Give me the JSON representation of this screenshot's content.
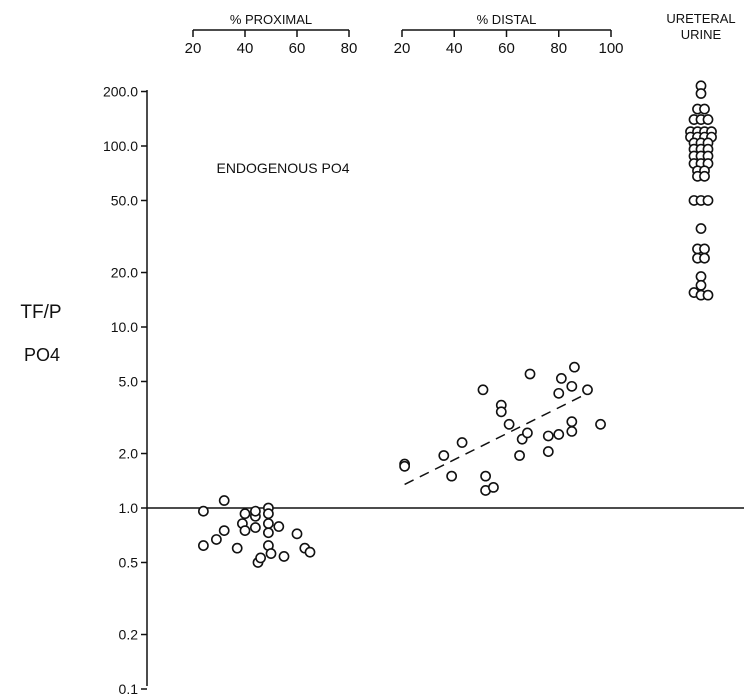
{
  "chart_data": {
    "type": "scatter",
    "y_scale": "log",
    "ylim": [
      0.1,
      200
    ],
    "y_ticks": [
      "0.1",
      "0.2",
      "0.5",
      "1.0",
      "2.0",
      "5.0",
      "10.0",
      "20.0",
      "50.0",
      "100.0",
      "200.0"
    ],
    "y_tick_values": [
      0.1,
      0.2,
      0.5,
      1.0,
      2.0,
      5.0,
      10.0,
      20.0,
      50.0,
      100.0,
      200.0
    ],
    "ylabel_line1": "TF/P",
    "ylabel_line2": "PO4",
    "annotation": "ENDOGENOUS PO4",
    "reference_line_y": 1.0,
    "grid": false,
    "legend": "none",
    "panels": [
      {
        "label": "% PROXIMAL",
        "xlim": [
          20,
          80
        ],
        "ticks": [
          "20",
          "40",
          "60",
          "80"
        ],
        "tick_values": [
          20,
          40,
          60,
          80
        ],
        "points": [
          [
            24,
            0.96
          ],
          [
            24,
            0.62
          ],
          [
            29,
            0.67
          ],
          [
            32,
            1.1
          ],
          [
            32,
            0.75
          ],
          [
            37,
            0.6
          ],
          [
            39,
            0.82
          ],
          [
            40,
            0.93
          ],
          [
            40,
            0.75
          ],
          [
            44,
            0.9
          ],
          [
            44,
            0.78
          ],
          [
            44,
            0.96
          ],
          [
            45,
            0.5
          ],
          [
            46,
            0.53
          ],
          [
            49,
            1.0
          ],
          [
            49,
            0.93
          ],
          [
            49,
            0.82
          ],
          [
            49,
            0.73
          ],
          [
            49,
            0.62
          ],
          [
            50,
            0.56
          ],
          [
            53,
            0.79
          ],
          [
            55,
            0.54
          ],
          [
            60,
            0.72
          ],
          [
            63,
            0.6
          ],
          [
            65,
            0.57
          ]
        ]
      },
      {
        "label": "% DISTAL",
        "xlim": [
          20,
          100
        ],
        "ticks": [
          "20",
          "40",
          "60",
          "80",
          "100"
        ],
        "tick_values": [
          20,
          40,
          60,
          80,
          100
        ],
        "points": [
          [
            21,
            1.75
          ],
          [
            21,
            1.7
          ],
          [
            36,
            1.95
          ],
          [
            39,
            1.5
          ],
          [
            43,
            2.3
          ],
          [
            51,
            4.5
          ],
          [
            52,
            1.5
          ],
          [
            52,
            1.25
          ],
          [
            55,
            1.3
          ],
          [
            58,
            3.7
          ],
          [
            58,
            3.4
          ],
          [
            61,
            2.9
          ],
          [
            65,
            1.95
          ],
          [
            66,
            2.4
          ],
          [
            68,
            2.6
          ],
          [
            69,
            5.5
          ],
          [
            76,
            2.05
          ],
          [
            76,
            2.5
          ],
          [
            80,
            2.55
          ],
          [
            80,
            4.3
          ],
          [
            81,
            5.2
          ],
          [
            85,
            2.65
          ],
          [
            85,
            3.0
          ],
          [
            85,
            4.7
          ],
          [
            86,
            6.0
          ],
          [
            91,
            4.5
          ],
          [
            96,
            2.9
          ]
        ],
        "trend_line": {
          "x": [
            21,
            91
          ],
          "y": [
            1.35,
            4.3
          ]
        }
      },
      {
        "label_line1": "URETERAL",
        "label_line2": "URINE",
        "points": [
          [
            0,
            215
          ],
          [
            0,
            195
          ],
          [
            -0.5,
            160
          ],
          [
            0.5,
            160
          ],
          [
            -1,
            140
          ],
          [
            0,
            140
          ],
          [
            1,
            140
          ],
          [
            -1.5,
            120
          ],
          [
            -0.5,
            120
          ],
          [
            0.5,
            120
          ],
          [
            1.5,
            120
          ],
          [
            -1.5,
            112
          ],
          [
            -0.5,
            112
          ],
          [
            0.5,
            112
          ],
          [
            1.5,
            112
          ],
          [
            -1,
            104
          ],
          [
            0,
            104
          ],
          [
            1,
            104
          ],
          [
            -1,
            96
          ],
          [
            0,
            96
          ],
          [
            1,
            96
          ],
          [
            -1,
            88
          ],
          [
            0,
            88
          ],
          [
            1,
            88
          ],
          [
            -1,
            80
          ],
          [
            0,
            80
          ],
          [
            1,
            80
          ],
          [
            -0.5,
            73
          ],
          [
            0.5,
            73
          ],
          [
            -0.5,
            68
          ],
          [
            0.5,
            68
          ],
          [
            -1,
            50
          ],
          [
            0,
            50
          ],
          [
            1,
            50
          ],
          [
            0,
            35
          ],
          [
            -0.5,
            27
          ],
          [
            0.5,
            27
          ],
          [
            -0.5,
            24
          ],
          [
            0.5,
            24
          ],
          [
            0,
            19
          ],
          [
            0,
            17
          ],
          [
            -1,
            15.5
          ],
          [
            0,
            15
          ],
          [
            1,
            15
          ]
        ]
      }
    ]
  }
}
